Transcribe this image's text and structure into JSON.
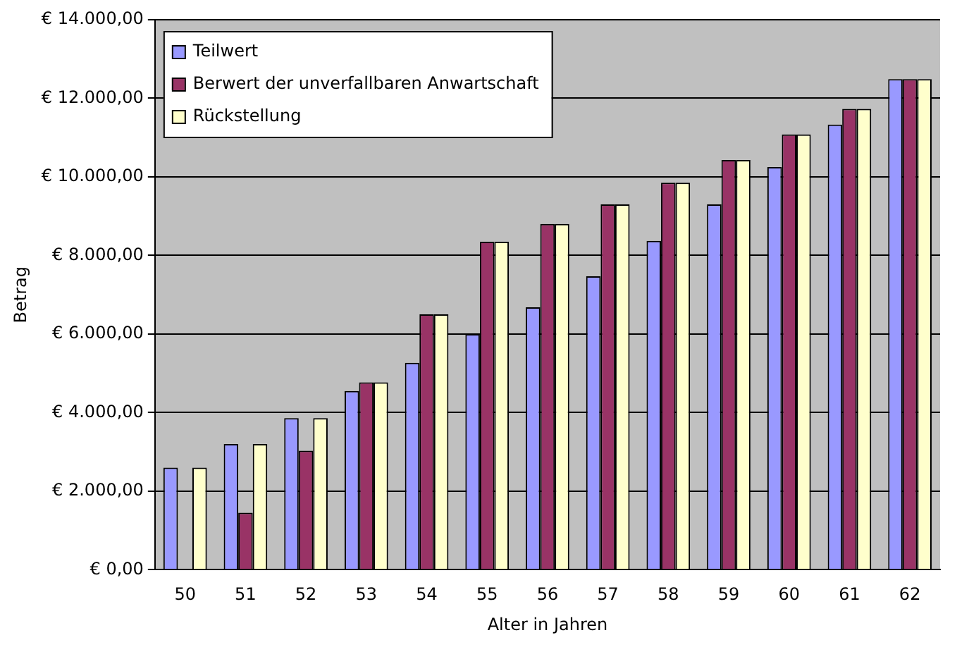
{
  "chart_data": {
    "type": "bar",
    "xlabel": "Alter in Jahren",
    "ylabel": "Betrag",
    "categories": [
      "50",
      "51",
      "52",
      "53",
      "54",
      "55",
      "56",
      "57",
      "58",
      "59",
      "60",
      "61",
      "62"
    ],
    "series": [
      {
        "name": "Teilwert",
        "color": "#9999ff",
        "values": [
          2600,
          3200,
          3860,
          4550,
          5270,
          6000,
          6680,
          7470,
          8370,
          9300,
          10250,
          11330,
          12490
        ]
      },
      {
        "name": "Berwert der unverfallbaren Anwartschaft",
        "color": "#993366",
        "values": [
          0,
          1450,
          3030,
          4770,
          6500,
          8350,
          8800,
          9300,
          9850,
          10430,
          11080,
          11730,
          12490
        ]
      },
      {
        "name": "Rückstellung",
        "color": "#ffffcc",
        "values": [
          2600,
          3200,
          3860,
          4770,
          6500,
          8350,
          8800,
          9300,
          9850,
          10430,
          11080,
          11730,
          12490
        ]
      }
    ],
    "ylim": [
      0,
      14000
    ],
    "yticks": [
      {
        "value": 0,
        "label": "€ 0,00"
      },
      {
        "value": 2000,
        "label": "€ 2.000,00"
      },
      {
        "value": 4000,
        "label": "€ 4.000,00"
      },
      {
        "value": 6000,
        "label": "€ 6.000,00"
      },
      {
        "value": 8000,
        "label": "€ 8.000,00"
      },
      {
        "value": 10000,
        "label": "€ 10.000,00"
      },
      {
        "value": 12000,
        "label": "€ 12.000,00"
      },
      {
        "value": 14000,
        "label": "€ 14.000,00"
      }
    ],
    "grid": "y",
    "legend": "top left"
  }
}
